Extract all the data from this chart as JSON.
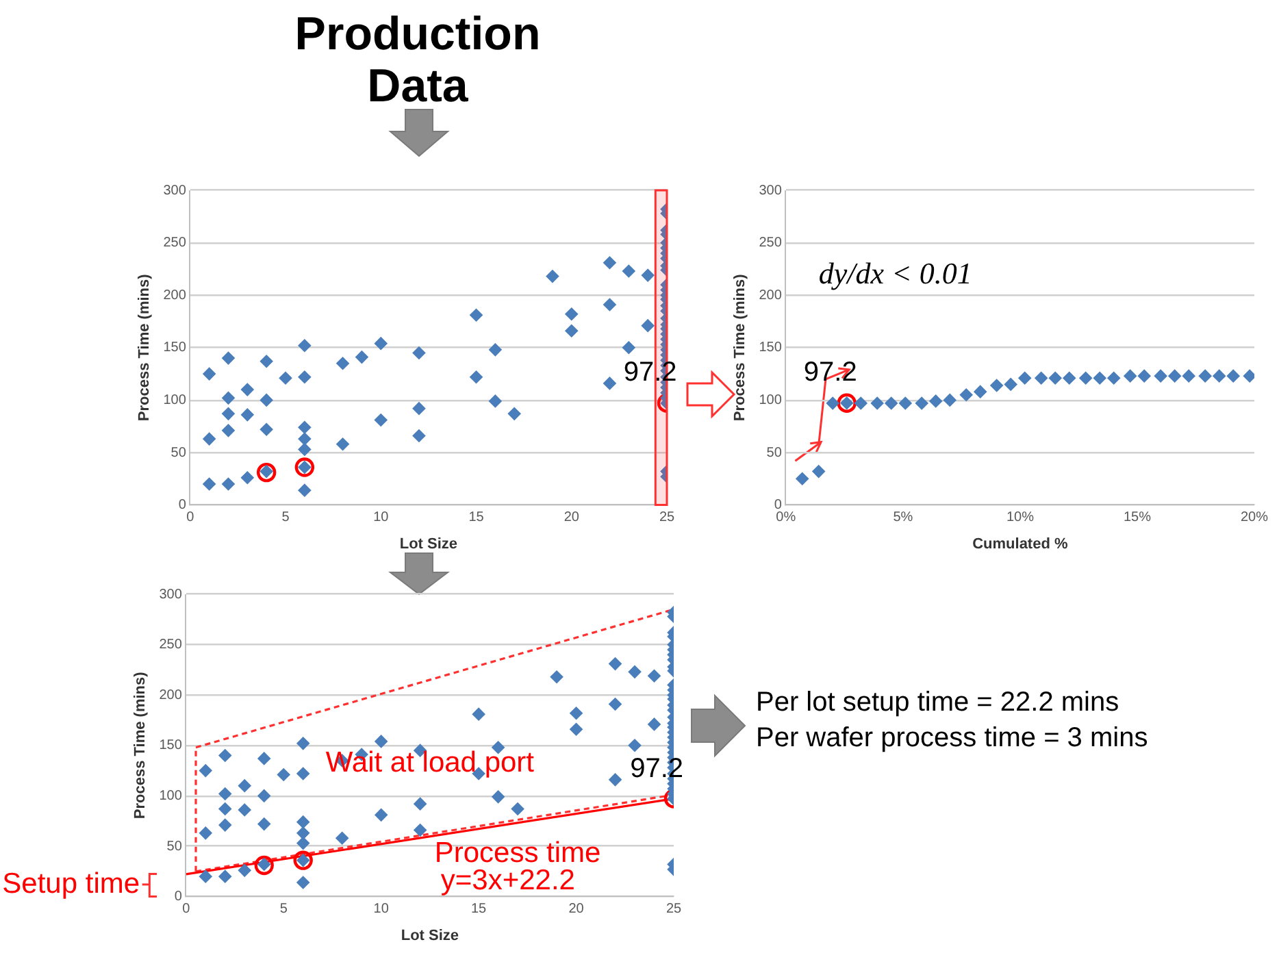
{
  "chart_data": [
    {
      "type": "scatter",
      "title": "Production Data",
      "xlabel": "Lot Size",
      "ylabel": "Process Time (mins)",
      "xlim": [
        0,
        25
      ],
      "xticks": [
        0,
        5,
        10,
        15,
        20,
        25
      ],
      "ylim": [
        0,
        300
      ],
      "yticks": [
        0,
        50,
        100,
        150,
        200,
        250,
        300
      ],
      "grid": "y",
      "marker": "diamond",
      "series": [
        {
          "color": "#4a7ebb",
          "x": [
            1,
            1,
            1,
            2,
            2,
            2,
            2,
            2,
            3,
            3,
            3,
            4,
            4,
            4,
            4,
            5,
            6,
            6,
            6,
            6,
            6,
            6,
            6,
            8,
            8,
            9,
            10,
            10,
            12,
            12,
            12,
            15,
            15,
            16,
            16,
            17,
            19,
            20,
            20,
            22,
            22,
            22,
            23,
            23,
            24,
            24,
            25,
            25,
            25,
            25,
            25,
            25,
            25,
            25,
            25,
            25,
            25,
            25,
            25,
            25,
            25,
            25,
            25,
            25,
            25,
            25,
            25,
            25,
            25,
            25,
            25,
            25,
            25,
            25,
            25,
            25,
            25,
            25,
            25,
            25,
            25
          ],
          "values": [
            125,
            63,
            20,
            140,
            102,
            87,
            71,
            20,
            110,
            86,
            26,
            137,
            100,
            72,
            32,
            121,
            152,
            122,
            74,
            63,
            53,
            36,
            14,
            135,
            58,
            141,
            154,
            81,
            145,
            92,
            66,
            181,
            122,
            148,
            99,
            87,
            218,
            182,
            166,
            231,
            191,
            116,
            223,
            150,
            219,
            171,
            282,
            278,
            262,
            258,
            250,
            245,
            240,
            235,
            228,
            224,
            210,
            205,
            200,
            196,
            190,
            185,
            178,
            172,
            168,
            163,
            158,
            153,
            148,
            143,
            138,
            133,
            128,
            122,
            117,
            112,
            107,
            102,
            97,
            32,
            27
          ]
        },
        {
          "color": "#ff0000",
          "marker": "circle",
          "x": [
            4,
            6,
            25
          ],
          "values": [
            31,
            36,
            97.2
          ]
        }
      ],
      "bands": [
        {
          "axis": "x",
          "from": 24.4,
          "to": 25,
          "color": "#ff3030"
        }
      ],
      "annotations": [
        "97.2"
      ]
    },
    {
      "type": "scatter",
      "xlabel": "Cumulated %",
      "ylabel": "Process Time (mins)",
      "xlim": [
        0,
        20
      ],
      "xticks": [
        {
          "value": 0,
          "label": "0%"
        },
        {
          "value": 5,
          "label": "5%"
        },
        {
          "value": 10,
          "label": "10%"
        },
        {
          "value": 15,
          "label": "15%"
        },
        {
          "value": 20,
          "label": "20%"
        }
      ],
      "ylim": [
        0,
        300
      ],
      "yticks": [
        0,
        50,
        100,
        150,
        200,
        250,
        300
      ],
      "grid": "y",
      "marker": "diamond",
      "series": [
        {
          "color": "#4a7ebb",
          "x": [
            0.7,
            1.4,
            2.0,
            2.6,
            3.2,
            3.9,
            4.5,
            5.1,
            5.8,
            6.4,
            7.0,
            7.7,
            8.3,
            9.0,
            9.6,
            10.2,
            10.9,
            11.5,
            12.1,
            12.8,
            13.4,
            14.0,
            14.7,
            15.3,
            16.0,
            16.6,
            17.2,
            17.9,
            18.5,
            19.1,
            19.8
          ],
          "values": [
            25,
            32,
            97,
            97.2,
            97,
            97,
            97,
            97,
            97,
            99,
            100,
            105,
            108,
            114,
            115,
            121,
            121,
            121,
            121,
            121,
            121,
            121,
            123,
            123,
            123,
            123,
            123,
            123,
            123,
            123,
            123
          ]
        },
        {
          "color": "#ff0000",
          "marker": "circle",
          "x": [
            2.6
          ],
          "values": [
            97.2
          ]
        }
      ],
      "annotations": [
        "97.2",
        "dy/dx < 0.01"
      ]
    },
    {
      "type": "scatter",
      "xlabel": "Lot Size",
      "ylabel": "Process Time (mins)",
      "xlim": [
        0,
        25
      ],
      "xticks": [
        0,
        5,
        10,
        15,
        20,
        25
      ],
      "ylim": [
        0,
        300
      ],
      "yticks": [
        0,
        50,
        100,
        150,
        200,
        250,
        300
      ],
      "grid": "y",
      "marker": "diamond",
      "series": [
        {
          "color": "#4a7ebb",
          "x": [
            1,
            1,
            1,
            2,
            2,
            2,
            2,
            2,
            3,
            3,
            3,
            4,
            4,
            4,
            4,
            5,
            6,
            6,
            6,
            6,
            6,
            6,
            6,
            8,
            8,
            9,
            10,
            10,
            12,
            12,
            12,
            15,
            15,
            16,
            16,
            17,
            19,
            20,
            20,
            22,
            22,
            22,
            23,
            23,
            24,
            24,
            25,
            25,
            25,
            25,
            25,
            25,
            25,
            25,
            25,
            25,
            25,
            25,
            25,
            25,
            25,
            25,
            25,
            25,
            25,
            25,
            25,
            25,
            25,
            25,
            25,
            25,
            25,
            25,
            25,
            25,
            25,
            25,
            25,
            25,
            25
          ],
          "values": [
            125,
            63,
            20,
            140,
            102,
            87,
            71,
            20,
            110,
            86,
            26,
            137,
            100,
            72,
            32,
            121,
            152,
            122,
            74,
            63,
            53,
            36,
            14,
            135,
            58,
            141,
            154,
            81,
            145,
            92,
            66,
            181,
            122,
            148,
            99,
            87,
            218,
            182,
            166,
            231,
            191,
            116,
            223,
            150,
            219,
            171,
            282,
            278,
            262,
            258,
            250,
            245,
            240,
            235,
            228,
            224,
            210,
            205,
            200,
            196,
            190,
            185,
            178,
            172,
            168,
            163,
            158,
            153,
            148,
            143,
            138,
            133,
            128,
            122,
            117,
            112,
            107,
            102,
            97,
            32,
            27
          ]
        },
        {
          "color": "#ff0000",
          "marker": "circle",
          "x": [
            4,
            6,
            25
          ],
          "values": [
            31,
            36,
            97.2
          ]
        },
        {
          "type": "line",
          "color": "#ff0000",
          "marker": "none",
          "x": [
            0,
            25
          ],
          "values": [
            22.2,
            97.2
          ]
        },
        {
          "type": "line",
          "color": "#ff3030",
          "marker": "none",
          "line_style": "dashed",
          "x": [
            0.5,
            25
          ],
          "values": [
            148,
            285
          ]
        },
        {
          "type": "line",
          "color": "#ff3030",
          "marker": "none",
          "line_style": "dashed",
          "x": [
            0.5,
            25
          ],
          "values": [
            25,
            101
          ]
        },
        {
          "type": "line",
          "color": "#ff3030",
          "marker": "none",
          "line_style": "dashed",
          "x": [
            0.5,
            0.5
          ],
          "values": [
            25,
            148
          ]
        }
      ],
      "annotations": [
        "Wait at load port",
        "Process time",
        "y=3x+22.2",
        "97.2",
        "Setup time"
      ]
    },
    {
      "type": "other",
      "annotations": [
        "Per lot setup time = 22.2 mins",
        "Per wafer process time = 3 mins"
      ]
    }
  ]
}
